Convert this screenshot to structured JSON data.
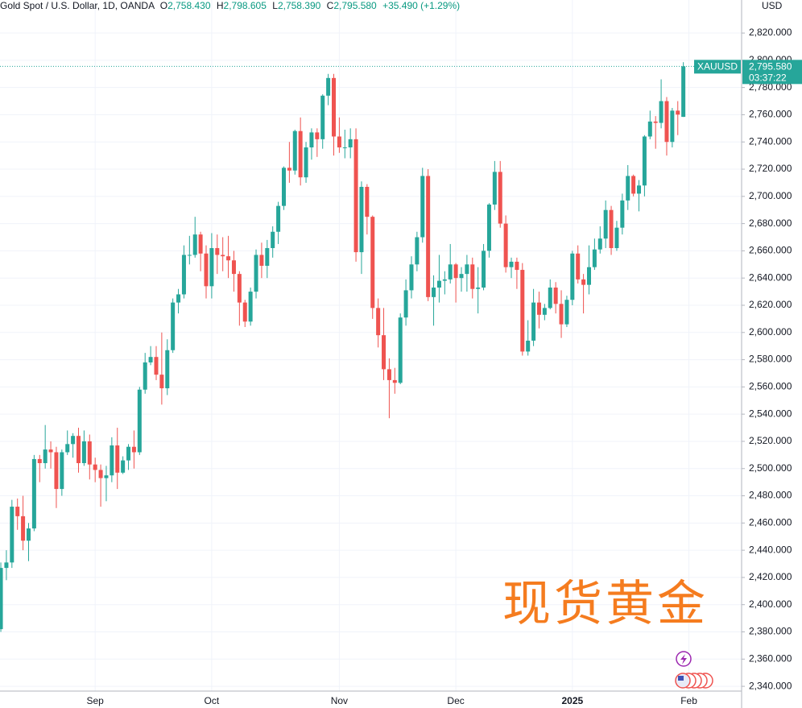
{
  "chart_data": {
    "type": "candlestick",
    "header": {
      "symbol": "Gold Spot / U.S. Dollar, 1D, OANDA",
      "o": "O",
      "o_value": "2,758.430",
      "h": "H",
      "h_value": "2,798.605",
      "l": "L",
      "l_value": "2,758.390",
      "c": "C",
      "c_value": "2,795.580",
      "change": "+35.490 (+1.29%)"
    },
    "currency": "USD",
    "last_price": {
      "symbol": "XAUUSD",
      "price": "2,795.580",
      "countdown": "03:37:22"
    },
    "watermark": "现货黄金",
    "up_color": "#26a69a",
    "down_color": "#ef5350",
    "grid": true,
    "open": [
      2382,
      2427,
      2431,
      2472,
      2465,
      2447,
      2456,
      2507,
      2504,
      2514,
      2512,
      2485,
      2512,
      2518,
      2524,
      2504,
      2520,
      2503,
      2499,
      2493,
      2495,
      2517,
      2497,
      2506,
      2516,
      2512,
      2558,
      2578,
      2582,
      2569,
      2559,
      2587,
      2622,
      2628,
      2657,
      2657,
      2672,
      2658,
      2634,
      2662,
      2657,
      2656,
      2653,
      2643,
      2622,
      2608,
      2630,
      2657,
      2649,
      2662,
      2674,
      2693,
      2721,
      2719,
      2748,
      2714,
      2736,
      2747,
      2742,
      2774,
      2787,
      2744,
      2736,
      2736,
      2742,
      2659,
      2707,
      2685,
      2618,
      2598,
      2573,
      2565,
      2563,
      2611,
      2631,
      2650,
      2670,
      2715,
      2626,
      2633,
      2638,
      2639,
      2650,
      2640,
      2643,
      2650,
      2632,
      2633,
      2660,
      2694,
      2718,
      2680,
      2648,
      2652,
      2646,
      2586,
      2594,
      2622,
      2613,
      2618,
      2633,
      2621,
      2606,
      2624,
      2658,
      2639,
      2635,
      2648,
      2661,
      2669,
      2690,
      2662,
      2677,
      2697,
      2715,
      2702,
      2708,
      2744,
      2755,
      2754,
      2770,
      2740,
      2763,
      2758.43
    ],
    "high": [
      2431,
      2440,
      2477,
      2478,
      2480,
      2460,
      2510,
      2510,
      2532,
      2520,
      2516,
      2514,
      2528,
      2526,
      2530,
      2528,
      2525,
      2508,
      2503,
      2502,
      2523,
      2530,
      2509,
      2518,
      2528,
      2560,
      2585,
      2590,
      2590,
      2600,
      2595,
      2625,
      2632,
      2664,
      2671,
      2685,
      2674,
      2664,
      2673,
      2672,
      2670,
      2671,
      2660,
      2645,
      2624,
      2633,
      2661,
      2666,
      2668,
      2678,
      2696,
      2722,
      2740,
      2749,
      2758,
      2740,
      2750,
      2750,
      2775,
      2790,
      2790,
      2758,
      2749,
      2750,
      2750,
      2711,
      2709,
      2686,
      2625,
      2618,
      2581,
      2574,
      2614,
      2639,
      2656,
      2674,
      2721,
      2720,
      2642,
      2657,
      2645,
      2665,
      2651,
      2648,
      2657,
      2655,
      2648,
      2665,
      2695,
      2726,
      2726,
      2686,
      2655,
      2655,
      2651,
      2609,
      2632,
      2630,
      2621,
      2639,
      2637,
      2631,
      2627,
      2660,
      2664,
      2643,
      2664,
      2669,
      2678,
      2697,
      2693,
      2682,
      2702,
      2723,
      2716,
      2712,
      2745,
      2763,
      2759,
      2786,
      2773,
      2765,
      2770,
      2798.605
    ],
    "low": [
      2380,
      2418,
      2427,
      2455,
      2440,
      2432,
      2454,
      2490,
      2500,
      2500,
      2471,
      2480,
      2510,
      2508,
      2497,
      2502,
      2492,
      2490,
      2472,
      2476,
      2490,
      2485,
      2496,
      2499,
      2500,
      2510,
      2555,
      2576,
      2565,
      2547,
      2554,
      2585,
      2614,
      2625,
      2650,
      2655,
      2645,
      2625,
      2625,
      2643,
      2645,
      2640,
      2630,
      2605,
      2604,
      2605,
      2625,
      2640,
      2640,
      2655,
      2665,
      2690,
      2710,
      2716,
      2708,
      2710,
      2727,
      2729,
      2735,
      2767,
      2730,
      2732,
      2728,
      2728,
      2652,
      2643,
      2672,
      2610,
      2589,
      2565,
      2537,
      2555,
      2562,
      2605,
      2625,
      2645,
      2666,
      2623,
      2605,
      2622,
      2628,
      2636,
      2622,
      2630,
      2630,
      2625,
      2614,
      2631,
      2655,
      2690,
      2677,
      2644,
      2640,
      2632,
      2583,
      2583,
      2590,
      2603,
      2609,
      2617,
      2614,
      2596,
      2604,
      2620,
      2636,
      2614,
      2628,
      2646,
      2658,
      2662,
      2657,
      2660,
      2672,
      2690,
      2700,
      2689,
      2700,
      2742,
      2735,
      2750,
      2730,
      2736,
      2745,
      2758.39
    ],
    "close": [
      2427,
      2431,
      2472,
      2465,
      2447,
      2456,
      2507,
      2504,
      2514,
      2512,
      2485,
      2512,
      2518,
      2524,
      2504,
      2520,
      2503,
      2499,
      2493,
      2495,
      2517,
      2497,
      2506,
      2516,
      2512,
      2558,
      2578,
      2582,
      2569,
      2559,
      2587,
      2622,
      2628,
      2657,
      2657,
      2672,
      2658,
      2634,
      2662,
      2657,
      2656,
      2653,
      2643,
      2622,
      2608,
      2630,
      2657,
      2649,
      2662,
      2674,
      2693,
      2721,
      2719,
      2748,
      2714,
      2736,
      2747,
      2742,
      2774,
      2787,
      2744,
      2736,
      2736,
      2742,
      2659,
      2707,
      2685,
      2618,
      2598,
      2573,
      2565,
      2563,
      2611,
      2631,
      2650,
      2670,
      2715,
      2626,
      2633,
      2638,
      2639,
      2650,
      2640,
      2643,
      2650,
      2632,
      2633,
      2660,
      2694,
      2718,
      2680,
      2648,
      2652,
      2646,
      2586,
      2594,
      2622,
      2613,
      2618,
      2633,
      2621,
      2606,
      2624,
      2658,
      2639,
      2635,
      2648,
      2661,
      2669,
      2690,
      2662,
      2677,
      2697,
      2715,
      2702,
      2708,
      2744,
      2755,
      2754,
      2770,
      2740,
      2763,
      2760.09,
      2795.58
    ],
    "xlim": [
      -0.15,
      133.5
    ],
    "xticks": [
      {
        "value": 17,
        "label": "Sep"
      },
      {
        "value": 38,
        "label": "Oct"
      },
      {
        "value": 61,
        "label": "Nov"
      },
      {
        "value": 82,
        "label": "Dec"
      },
      {
        "value": 103,
        "label": "2025"
      },
      {
        "value": 124,
        "label": "Feb"
      }
    ],
    "ylim": [
      2336.5,
      2844.3
    ],
    "yticks": [
      {
        "value": 2340,
        "label": "2,340.000"
      },
      {
        "value": 2360,
        "label": "2,360.000"
      },
      {
        "value": 2380,
        "label": "2,380.000"
      },
      {
        "value": 2400,
        "label": "2,400.000"
      },
      {
        "value": 2420,
        "label": "2,420.000"
      },
      {
        "value": 2440,
        "label": "2,440.000"
      },
      {
        "value": 2460,
        "label": "2,460.000"
      },
      {
        "value": 2480,
        "label": "2,480.000"
      },
      {
        "value": 2500,
        "label": "2,500.000"
      },
      {
        "value": 2520,
        "label": "2,520.000"
      },
      {
        "value": 2540,
        "label": "2,540.000"
      },
      {
        "value": 2560,
        "label": "2,560.000"
      },
      {
        "value": 2580,
        "label": "2,580.000"
      },
      {
        "value": 2600,
        "label": "2,600.000"
      },
      {
        "value": 2620,
        "label": "2,620.000"
      },
      {
        "value": 2640,
        "label": "2,640.000"
      },
      {
        "value": 2660,
        "label": "2,660.000"
      },
      {
        "value": 2680,
        "label": "2,680.000"
      },
      {
        "value": 2700,
        "label": "2,700.000"
      },
      {
        "value": 2720,
        "label": "2,720.000"
      },
      {
        "value": 2740,
        "label": "2,740.000"
      },
      {
        "value": 2760,
        "label": "2,760.000"
      },
      {
        "value": 2780,
        "label": "2,780.000"
      },
      {
        "value": 2800,
        "label": "2,800.000"
      },
      {
        "value": 2820,
        "label": "2,820.000"
      }
    ]
  }
}
